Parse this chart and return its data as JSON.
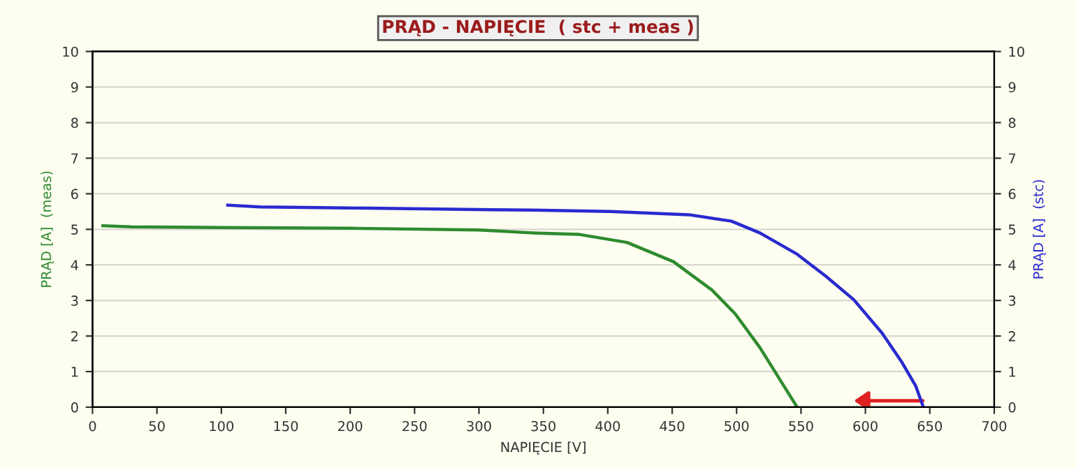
{
  "chart_data": {
    "type": "line",
    "title": "PRĄD - NAPIĘCIE  ( stc + meas )",
    "xlabel": "NAPIĘCIE [V]",
    "ylabel": "PRĄD [A]  (meas)",
    "y2label": "PRĄD [A]  (stc)",
    "xlim": [
      0,
      700
    ],
    "xticks": [
      0,
      50,
      100,
      150,
      200,
      250,
      300,
      350,
      400,
      450,
      500,
      550,
      600,
      650,
      700
    ],
    "ylim": [
      0,
      10
    ],
    "yticks": [
      0,
      1,
      2,
      3,
      4,
      5,
      6,
      7,
      8,
      9,
      10
    ],
    "y2lim": [
      0,
      10
    ],
    "y2ticks": [
      0,
      1,
      2,
      3,
      4,
      5,
      6,
      7,
      8,
      9,
      10
    ],
    "grid": "y",
    "marker": "none",
    "line_style": "solid",
    "series": [
      {
        "color": "#2e8b2e",
        "x": [
          8,
          30,
          100,
          200,
          300,
          341,
          377,
          415,
          451,
          481,
          499,
          518,
          532,
          547
        ],
        "values": [
          5.1,
          5.07,
          5.05,
          5.03,
          4.98,
          4.9,
          4.86,
          4.63,
          4.09,
          3.29,
          2.62,
          1.68,
          0.87,
          0
        ]
      },
      {
        "color": "#2a2ad0",
        "axis": "y2",
        "x": [
          105,
          130,
          200,
          310,
          341,
          402,
          463,
          496,
          518,
          547,
          569,
          591,
          613,
          628,
          639,
          645
        ],
        "values": [
          5.68,
          5.63,
          5.6,
          5.55,
          5.54,
          5.5,
          5.41,
          5.23,
          4.9,
          4.3,
          3.69,
          3.02,
          2.08,
          1.28,
          0.6,
          0
        ]
      }
    ]
  }
}
